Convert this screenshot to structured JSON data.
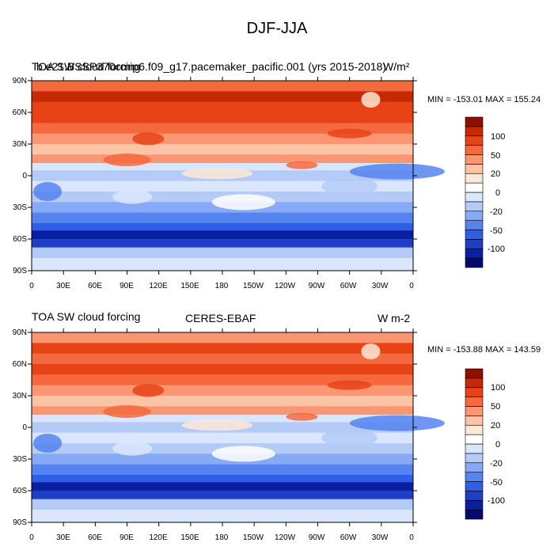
{
  "title": "DJF-JJA",
  "colors": {
    "palette": [
      "#050a6e",
      "#0a1fa0",
      "#1f3ec8",
      "#2f5fe8",
      "#5584f0",
      "#86aaf5",
      "#b4cbf8",
      "#daE6fb",
      "#ffffff",
      "#fde7d6",
      "#fcc3a6",
      "#fa9672",
      "#f46a3e",
      "#e84316",
      "#c62a05",
      "#8e0e00"
    ]
  },
  "panels": [
    {
      "id": "top",
      "left_label": "TOA SW cloud forcing",
      "center_label": "b.e21.BSSP370cmip6.f09_g17.pacemaker_pacific.001 (yrs 2015-2018)",
      "right_label": "W/m²",
      "min_max": "MIN = -153.01 MAX = 155.24"
    },
    {
      "id": "bottom",
      "left_label": "TOA SW cloud forcing",
      "center_label": "CERES-EBAF",
      "right_label": "W m-2",
      "min_max": "MIN = -153.88 MAX = 143.59"
    }
  ],
  "lat_ticks": [
    "90N",
    "60N",
    "30N",
    "0",
    "30S",
    "60S",
    "90S"
  ],
  "lon_ticks": [
    "0",
    "30E",
    "60E",
    "90E",
    "120E",
    "150E",
    "180",
    "150W",
    "120W",
    "90W",
    "60W",
    "30W",
    "0"
  ],
  "colorbar_labels": [
    "100",
    "50",
    "20",
    "0",
    "-20",
    "-50",
    "-100"
  ]
}
